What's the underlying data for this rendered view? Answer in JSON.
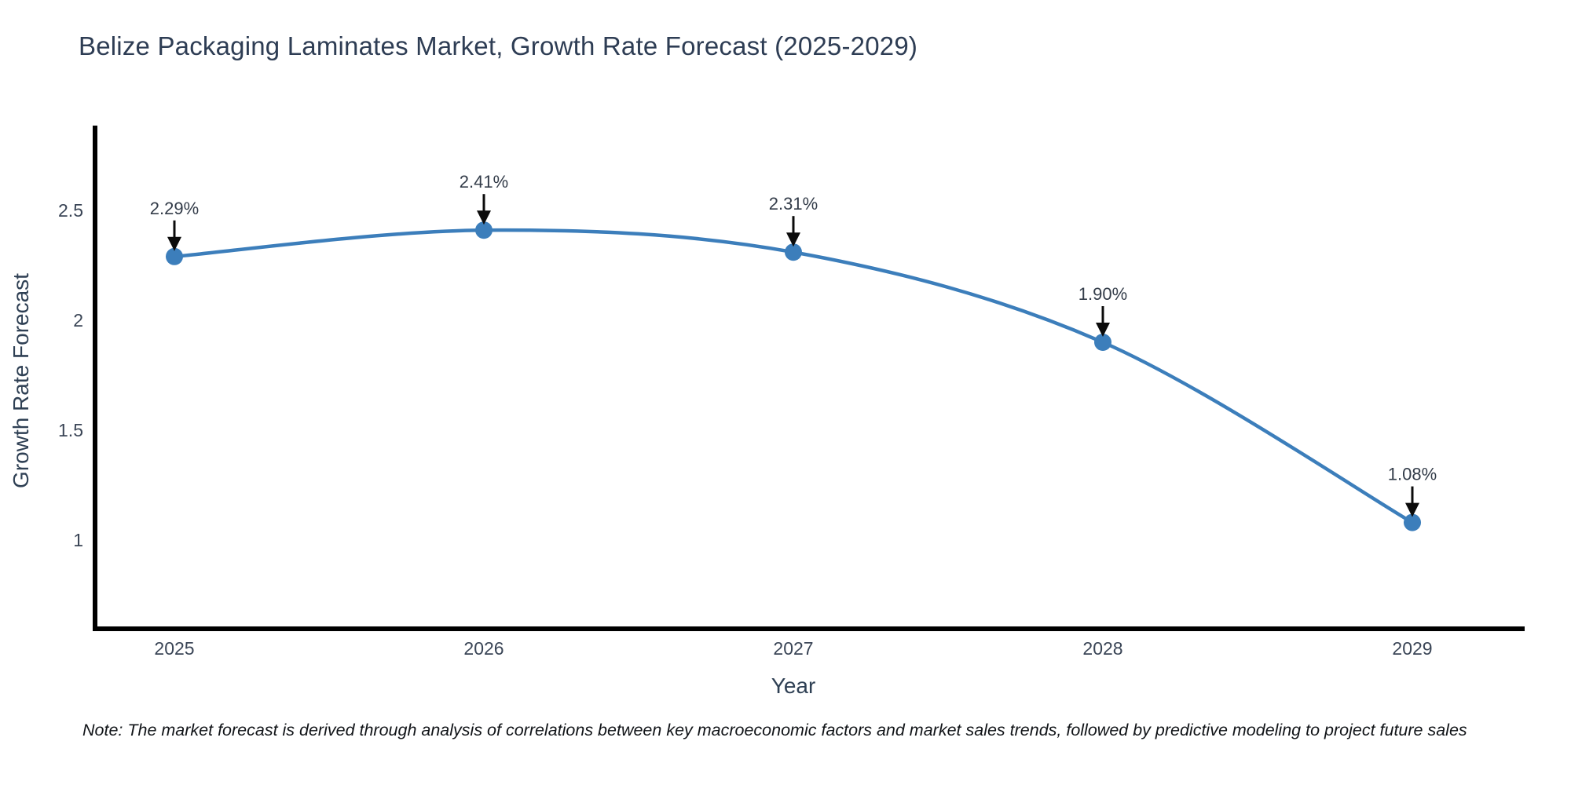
{
  "page": {
    "background": "#ffffff"
  },
  "chart": {
    "note": "Note: The market forecast is derived through analysis of correlations between key macroeconomic factors and market sales trends, followed by predictive modeling to project future sales",
    "colors": {
      "line": "#3c7ebb",
      "marker": "#3c7ebb",
      "axis_line": "#000000",
      "arrow": "#0b0b0b",
      "title_text": "#2e3d54",
      "axis_title_text": "#2f4054",
      "tick_text": "#3a4556",
      "point_label_text": "#333c49"
    }
  },
  "chart_data": {
    "type": "line",
    "title": "Belize Packaging Laminates Market, Growth Rate Forecast (2025-2029)",
    "xlabel": "Year",
    "ylabel": "Growth Rate Forecast",
    "x": [
      2025,
      2026,
      2027,
      2028,
      2029
    ],
    "x_tick_labels": [
      "2025",
      "2026",
      "2027",
      "2028",
      "2029"
    ],
    "values": [
      2.29,
      2.41,
      2.31,
      1.9,
      1.08
    ],
    "point_labels": [
      "2.29%",
      "2.41%",
      "2.31%",
      "1.90%",
      "1.08%"
    ],
    "y_ticks": [
      2.5,
      2.0,
      1.5,
      1.0
    ],
    "y_tick_labels": [
      "2.5",
      "2",
      "1.5",
      "1"
    ],
    "ylim": [
      0.6,
      2.89
    ],
    "line_shape": "spline",
    "markers": true,
    "grid": false,
    "legend_position": "none",
    "annotation_style": "label-with-down-arrow-at-each-point"
  }
}
